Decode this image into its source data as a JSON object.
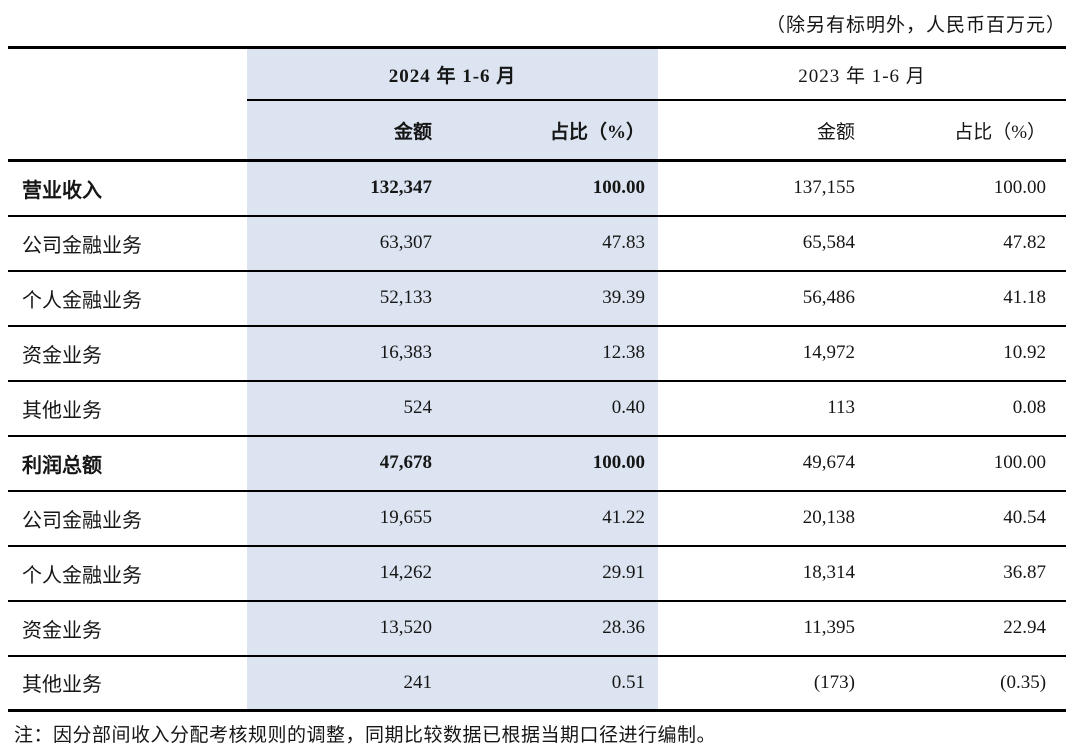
{
  "meta": {
    "unit_note": "（除另有标明外，人民币百万元）",
    "footnote": "注：因分部间收入分配考核规则的调整，同期比较数据已根据当期口径进行编制。"
  },
  "table": {
    "highlight_color": "#dbe4f0",
    "col_groups": [
      {
        "label": "2024 年 1-6 月",
        "highlight": true
      },
      {
        "label": "2023 年 1-6 月",
        "highlight": false
      }
    ],
    "sub_headers": {
      "amount": "金额",
      "ratio": "占比（%）"
    },
    "rows": [
      {
        "label": "营业收入",
        "bold": true,
        "amount_2024": "132,347",
        "ratio_2024": "100.00",
        "amount_2023": "137,155",
        "ratio_2023": "100.00"
      },
      {
        "label": "公司金融业务",
        "bold": false,
        "amount_2024": "63,307",
        "ratio_2024": "47.83",
        "amount_2023": "65,584",
        "ratio_2023": "47.82"
      },
      {
        "label": "个人金融业务",
        "bold": false,
        "amount_2024": "52,133",
        "ratio_2024": "39.39",
        "amount_2023": "56,486",
        "ratio_2023": "41.18"
      },
      {
        "label": "资金业务",
        "bold": false,
        "amount_2024": "16,383",
        "ratio_2024": "12.38",
        "amount_2023": "14,972",
        "ratio_2023": "10.92"
      },
      {
        "label": "其他业务",
        "bold": false,
        "amount_2024": "524",
        "ratio_2024": "0.40",
        "amount_2023": "113",
        "ratio_2023": "0.08"
      },
      {
        "label": "利润总额",
        "bold": true,
        "amount_2024": "47,678",
        "ratio_2024": "100.00",
        "amount_2023": "49,674",
        "ratio_2023": "100.00"
      },
      {
        "label": "公司金融业务",
        "bold": false,
        "amount_2024": "19,655",
        "ratio_2024": "41.22",
        "amount_2023": "20,138",
        "ratio_2023": "40.54"
      },
      {
        "label": "个人金融业务",
        "bold": false,
        "amount_2024": "14,262",
        "ratio_2024": "29.91",
        "amount_2023": "18,314",
        "ratio_2023": "36.87"
      },
      {
        "label": "资金业务",
        "bold": false,
        "amount_2024": "13,520",
        "ratio_2024": "28.36",
        "amount_2023": "11,395",
        "ratio_2023": "22.94"
      },
      {
        "label": "其他业务",
        "bold": false,
        "amount_2024": "241",
        "ratio_2024": "0.51",
        "amount_2023": "(173)",
        "ratio_2023": "(0.35)"
      }
    ]
  }
}
